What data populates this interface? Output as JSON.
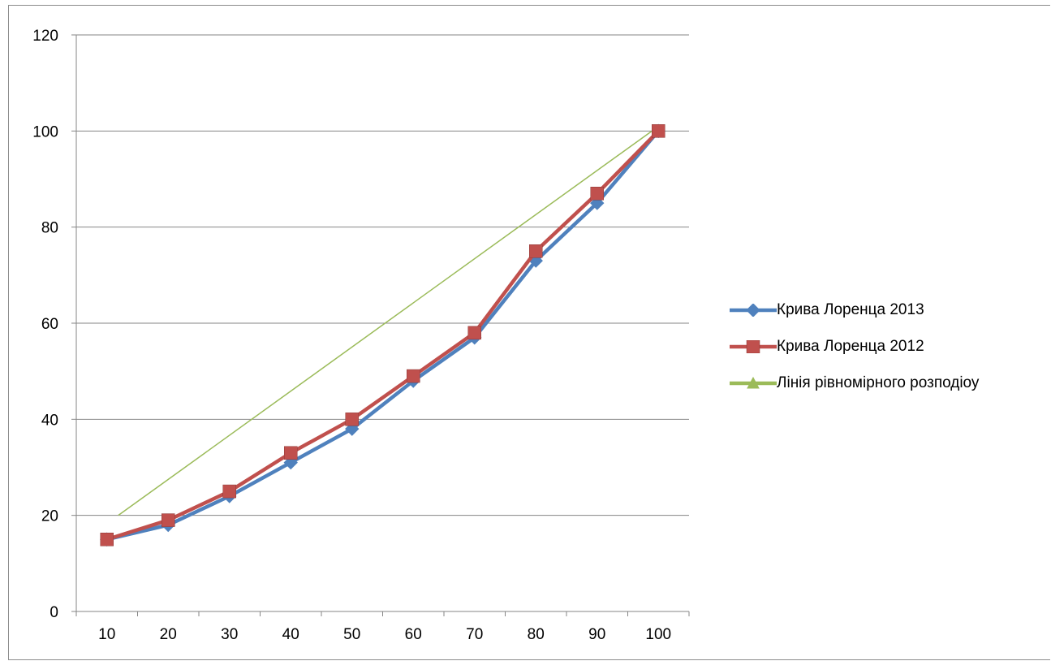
{
  "chart_data": {
    "type": "line",
    "title": "",
    "xlabel": "",
    "ylabel": "",
    "categories": [
      "10",
      "20",
      "30",
      "40",
      "50",
      "60",
      "70",
      "80",
      "90",
      "100"
    ],
    "ylim": [
      0,
      120
    ],
    "yticks": [
      0,
      20,
      40,
      60,
      80,
      100,
      120
    ],
    "grid": true,
    "legend_position": "right",
    "series": [
      {
        "name": "Крива Лоренца 2013",
        "color": "#4f81bd",
        "marker": "diamond",
        "values": [
          15,
          18,
          24,
          31,
          38,
          48,
          57,
          73,
          85,
          100
        ]
      },
      {
        "name": "Крива Лоренца 2012",
        "color": "#c0504d",
        "marker": "square",
        "values": [
          15,
          19,
          25,
          33,
          40,
          49,
          58,
          75,
          87,
          100
        ]
      },
      {
        "name": "Лінія рівномірного розподіоу",
        "color": "#9bbb59",
        "marker": "triangle",
        "values": [
          20,
          29,
          38,
          47,
          56,
          64,
          73,
          82,
          91,
          100
        ]
      }
    ]
  }
}
